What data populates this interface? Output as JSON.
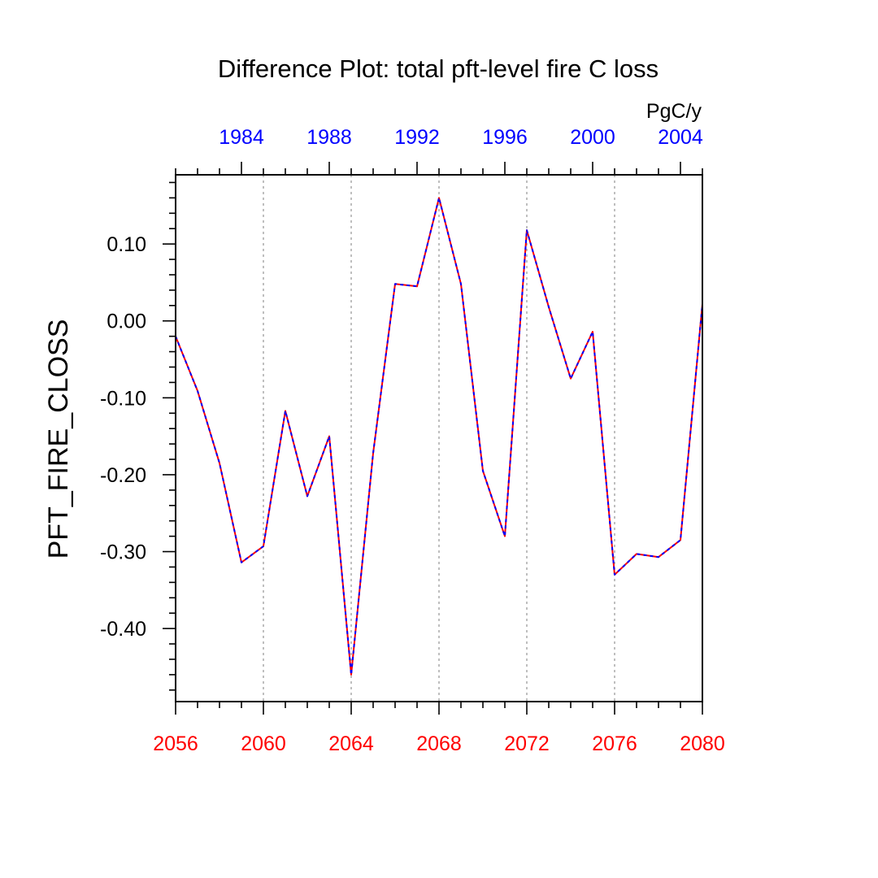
{
  "chart_data": {
    "type": "line",
    "title": "Difference Plot: total pft-level fire C loss",
    "units": "PgC/y",
    "ylabel": "PFT_FIRE_CLOSS",
    "ylim": [
      -0.495,
      0.19
    ],
    "yticks": [
      {
        "value": 0.1,
        "label": "0.10"
      },
      {
        "value": 0.0,
        "label": "0.00"
      },
      {
        "value": -0.1,
        "label": "-0.10"
      },
      {
        "value": -0.2,
        "label": "-0.20"
      },
      {
        "value": -0.3,
        "label": "-0.30"
      },
      {
        "value": -0.4,
        "label": "-0.40"
      }
    ],
    "bottom_axis": {
      "color": "#ff0000",
      "range": [
        2056,
        2080
      ],
      "ticks": [
        {
          "value": 2056,
          "label": "2056"
        },
        {
          "value": 2060,
          "label": "2060"
        },
        {
          "value": 2064,
          "label": "2064"
        },
        {
          "value": 2068,
          "label": "2068"
        },
        {
          "value": 2072,
          "label": "2072"
        },
        {
          "value": 2076,
          "label": "2076"
        },
        {
          "value": 2080,
          "label": "2080"
        }
      ]
    },
    "top_axis": {
      "color": "#0000ff",
      "range": [
        1981,
        2005
      ],
      "ticks": [
        {
          "value": 1984,
          "label": "1984"
        },
        {
          "value": 1988,
          "label": "1988"
        },
        {
          "value": 1992,
          "label": "1992"
        },
        {
          "value": 1996,
          "label": "1996"
        },
        {
          "value": 2000,
          "label": "2000"
        },
        {
          "value": 2004,
          "label": "2004"
        }
      ]
    },
    "gridlines_x": [
      2060,
      2064,
      2068,
      2072,
      2076
    ],
    "series": [
      {
        "color_primary": "#ff0000",
        "color_dash": "#0000ff",
        "x": [
          2056,
          2057,
          2058,
          2059,
          2060,
          2061,
          2062,
          2063,
          2064,
          2065,
          2066,
          2067,
          2068,
          2069,
          2070,
          2071,
          2072,
          2073,
          2074,
          2075,
          2076,
          2077,
          2078,
          2079,
          2080
        ],
        "values": [
          -0.02,
          -0.091,
          -0.185,
          -0.314,
          -0.293,
          -0.117,
          -0.228,
          -0.15,
          -0.46,
          -0.172,
          0.048,
          0.045,
          0.16,
          0.048,
          -0.195,
          -0.28,
          0.118,
          0.018,
          -0.075,
          -0.014,
          -0.33,
          -0.303,
          -0.307,
          -0.285,
          0.022
        ]
      }
    ]
  }
}
